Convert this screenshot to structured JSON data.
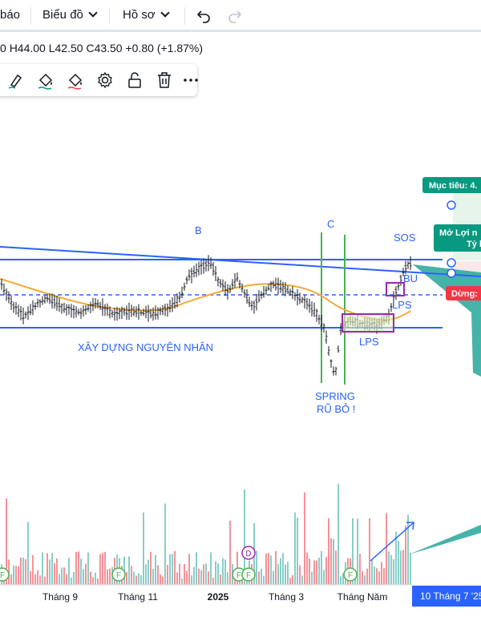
{
  "toolbar": {
    "alert_label": "báo",
    "chart_menu_label": "Biểu đồ",
    "profile_menu_label": "Hồ sơ",
    "undo_icon": "undo-icon",
    "redo_icon": "redo-icon"
  },
  "ohlc": {
    "prefix": "0",
    "high": "H44.00",
    "low": "L42.50",
    "close": "C43.50",
    "change": "+0.80 (+1.87%)"
  },
  "drawing_toolbar": {
    "icons": [
      "brush-icon",
      "fill-icon",
      "fill-icon",
      "gear-icon",
      "lock-open-icon",
      "trash-icon",
      "more-icon"
    ]
  },
  "chart_data": {
    "type": "candlestick",
    "x_ticks": [
      "Tháng 9",
      "Tháng 11",
      "2025",
      "Tháng 3",
      "Tháng Năm"
    ],
    "current_date_label": "10 Tháng 7 '25",
    "ohlc_last": {
      "high": 44.0,
      "low": 42.5,
      "close": 43.5,
      "change": 0.8,
      "change_pct": 1.87
    },
    "annotations": [
      {
        "text": "B",
        "role": "wyckoff-label"
      },
      {
        "text": "C",
        "role": "wyckoff-label"
      },
      {
        "text": "SOS",
        "role": "wyckoff-label"
      },
      {
        "text": "BU",
        "role": "wyckoff-label"
      },
      {
        "text": "LPS",
        "role": "wyckoff-label"
      },
      {
        "text": "LPS",
        "role": "wyckoff-label"
      },
      {
        "text": "XÂY DỰNG NGUYÊN NHÂN",
        "role": "range-label"
      },
      {
        "text": "SPRING",
        "role": "event-label"
      },
      {
        "text": "RŨ BỎ !",
        "role": "event-label"
      }
    ],
    "trade_labels": {
      "target": "Mục tiêu: 4.",
      "entry_line1": "Mở Lợi n",
      "entry_line2": "Tỷ l",
      "stop": "Dừng: "
    },
    "event_markers": [
      "F",
      "F",
      "F",
      "D",
      "F",
      "F"
    ],
    "colors": {
      "candles": "#131722",
      "moving_average": "#f2a93b",
      "trend_lines": "#2962ff",
      "spring_lines": "#4caf50",
      "boxes": "#9c27b0",
      "volume": "#26a69a",
      "target": "#089981",
      "stop": "#f23645"
    }
  }
}
